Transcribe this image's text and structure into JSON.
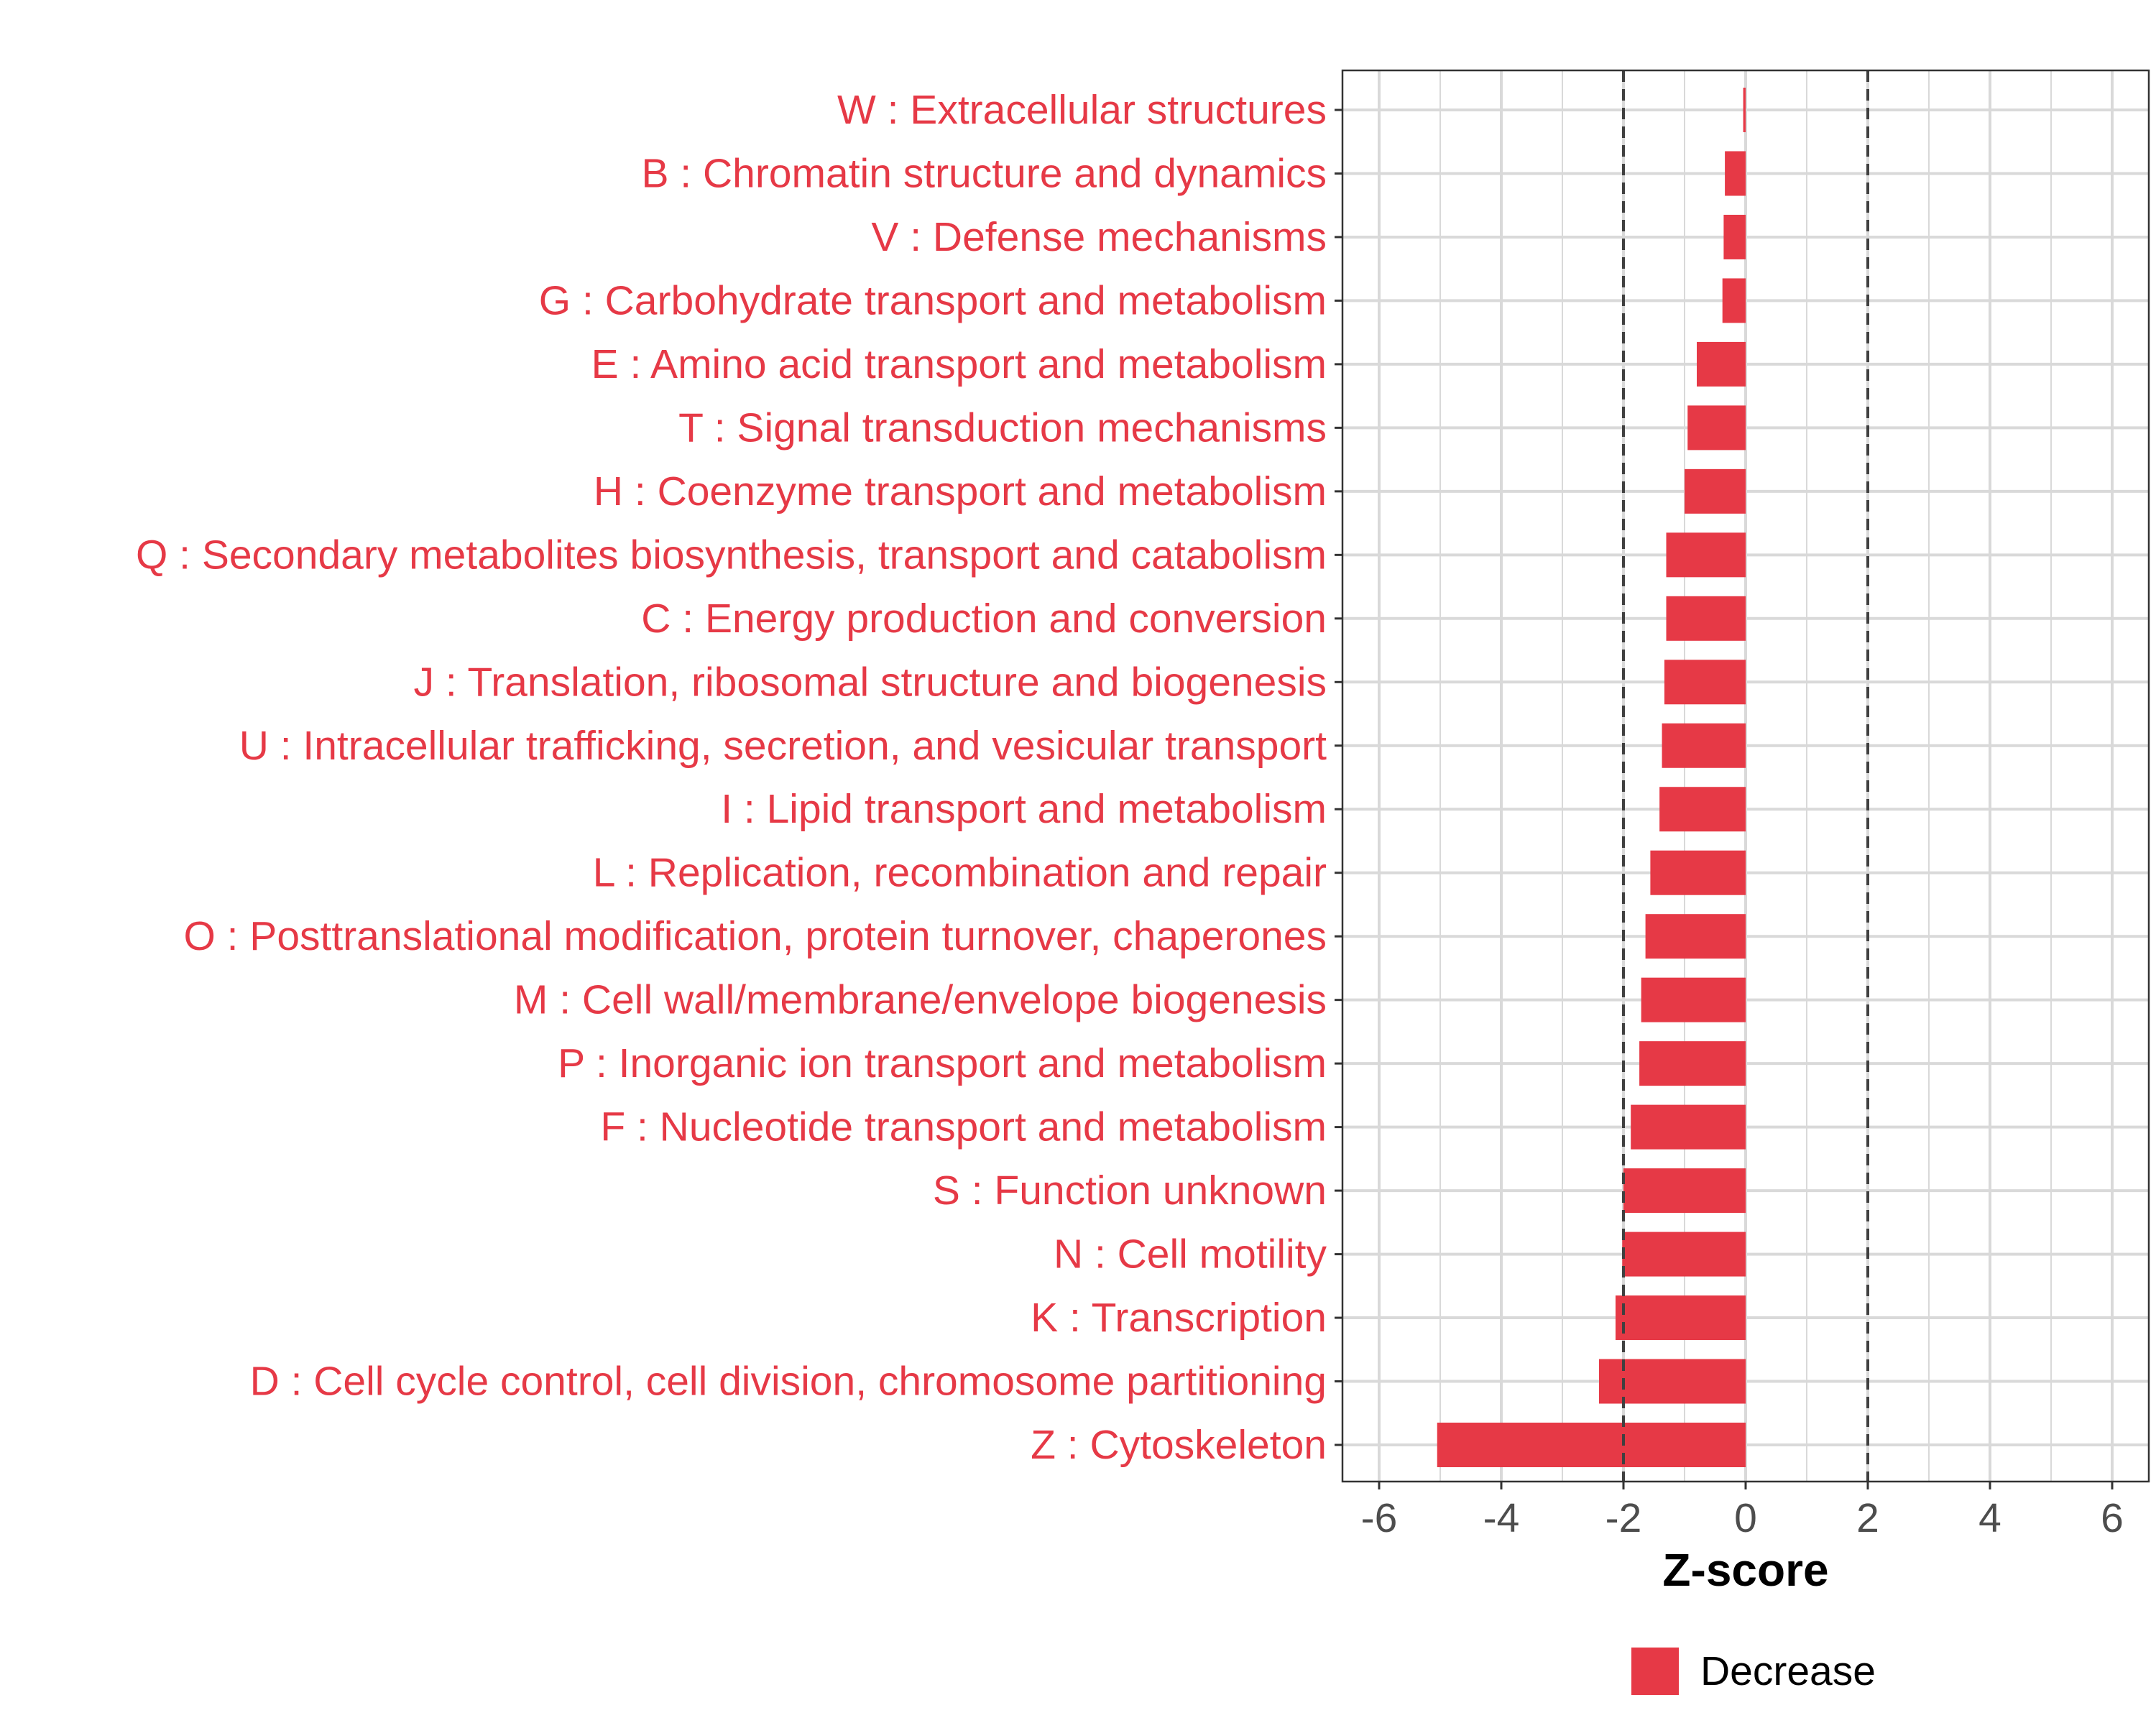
{
  "chart_data": {
    "type": "bar",
    "orientation": "horizontal",
    "title": "",
    "xlabel": "Z-score",
    "ylabel": "",
    "xlim": [
      -6.6,
      6.6
    ],
    "xticks": [
      -6,
      -4,
      -2,
      0,
      2,
      4,
      6
    ],
    "tick_labels": [
      "-6",
      "-4",
      "-2",
      "0",
      "2",
      "4",
      "6"
    ],
    "reference_lines": [
      -2,
      2
    ],
    "grid": true,
    "legend": {
      "position": "bottom",
      "entries": [
        {
          "label": "Decrease",
          "color": "#E63946"
        }
      ]
    },
    "colors": {
      "bar": "#E63946",
      "category_text": "#E63946",
      "tick_text": "#4D4D4D",
      "grid": "#D9D9D9",
      "ref_line": "#404040",
      "axis_title": "#000000"
    },
    "categories": [
      "W : Extracellular structures",
      "B : Chromatin structure and dynamics",
      "V : Defense mechanisms",
      "G : Carbohydrate transport and metabolism",
      "E : Amino acid transport and metabolism",
      "T : Signal transduction mechanisms",
      "H : Coenzyme transport and metabolism",
      "Q : Secondary metabolites biosynthesis, transport and catabolism",
      "C : Energy production and conversion",
      "J : Translation, ribosomal structure and biogenesis",
      "U : Intracellular trafficking, secretion, and vesicular transport",
      "I : Lipid transport and metabolism",
      "L : Replication, recombination and repair",
      "O : Posttranslational modification, protein turnover, chaperones",
      "M : Cell wall/membrane/envelope biogenesis",
      "P : Inorganic ion transport and metabolism",
      "F : Nucleotide transport and metabolism",
      "S : Function unknown",
      "N : Cell motility",
      "K : Transcription",
      "D : Cell cycle control, cell division, chromosome partitioning",
      "Z : Cytoskeleton"
    ],
    "values": [
      -0.04,
      -0.34,
      -0.36,
      -0.38,
      -0.8,
      -0.95,
      -1.0,
      -1.3,
      -1.3,
      -1.33,
      -1.37,
      -1.41,
      -1.56,
      -1.64,
      -1.71,
      -1.74,
      -1.88,
      -2.0,
      -2.02,
      -2.13,
      -2.4,
      -5.05
    ],
    "series_name": "Decrease"
  }
}
